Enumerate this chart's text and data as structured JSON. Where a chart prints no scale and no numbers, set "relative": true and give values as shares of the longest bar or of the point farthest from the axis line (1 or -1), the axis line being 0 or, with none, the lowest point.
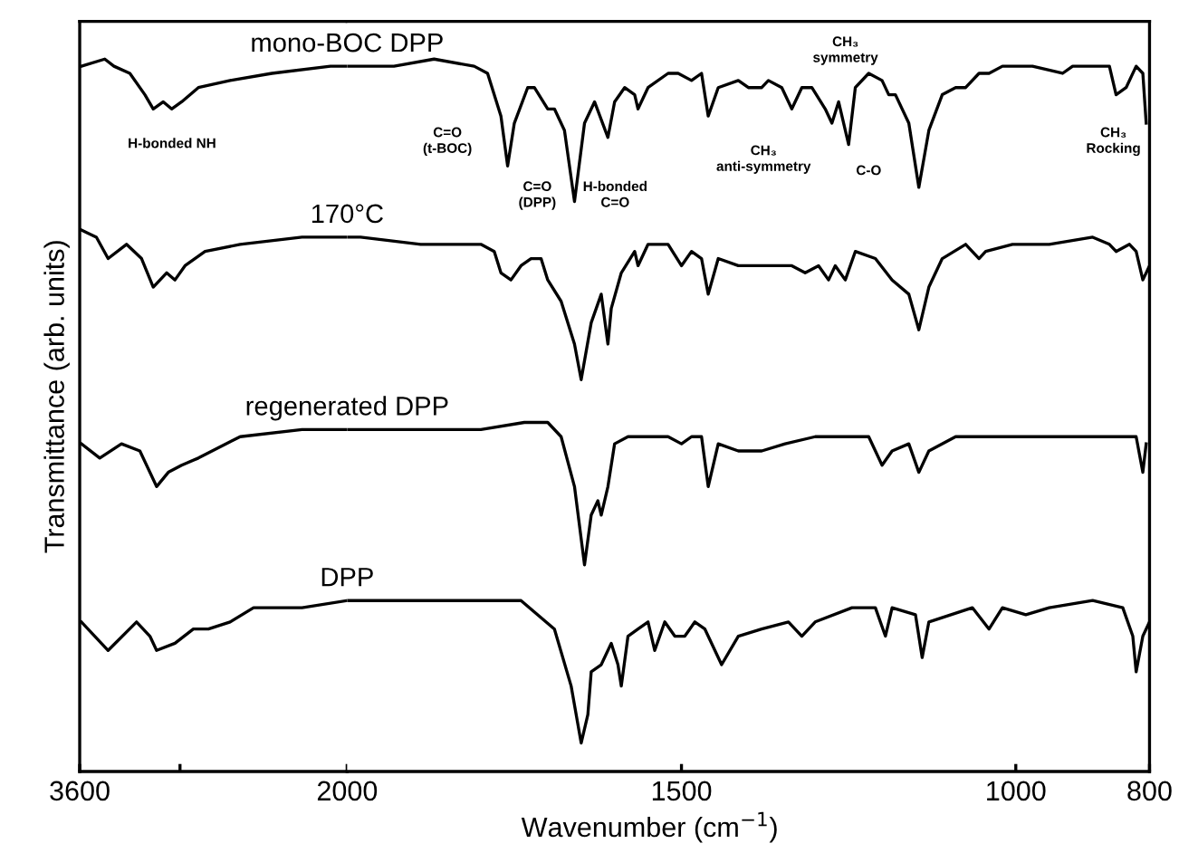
{
  "chart_data": [
    {
      "type": "line",
      "relative": true,
      "ylabel": "Transmittance (arb. units)",
      "xlim": [
        3600,
        2000
      ],
      "xticks": [
        3600,
        {
          "value": 3000,
          "label": null
        },
        2000
      ],
      "grid": false,
      "legend": false,
      "marker": "none",
      "line_style": "solid",
      "series": [
        {
          "name": "mono-BOC DPP",
          "color": "#000000",
          "x": [
            3590,
            3450,
            3395,
            3300,
            3210,
            3160,
            3100,
            3050,
            2990,
            2890,
            2700,
            2450,
            2100,
            2000
          ],
          "values": [
            0.99,
            1.0,
            0.99,
            0.98,
            0.95,
            0.93,
            0.94,
            0.93,
            0.94,
            0.96,
            0.97,
            0.98,
            0.99,
            0.99
          ]
        },
        {
          "name": "170°C",
          "color": "#000000",
          "x": [
            3590,
            3500,
            3430,
            3320,
            3230,
            3160,
            3080,
            3030,
            2970,
            2850,
            2640,
            2270,
            2000
          ],
          "values": [
            0.76,
            0.75,
            0.72,
            0.74,
            0.72,
            0.68,
            0.7,
            0.69,
            0.71,
            0.73,
            0.74,
            0.75,
            0.75
          ]
        },
        {
          "name": "regenerated DPP",
          "color": "#000000",
          "x": [
            3590,
            3480,
            3350,
            3240,
            3140,
            3070,
            2990,
            2890,
            2640,
            2270,
            2000
          ],
          "values": [
            0.46,
            0.44,
            0.46,
            0.45,
            0.4,
            0.42,
            0.43,
            0.44,
            0.47,
            0.48,
            0.48
          ]
        },
        {
          "name": "DPP",
          "color": "#000000",
          "x": [
            3590,
            3430,
            3260,
            3180,
            3140,
            3030,
            2920,
            2830,
            2700,
            2560,
            2270,
            2000
          ],
          "values": [
            0.21,
            0.17,
            0.21,
            0.19,
            0.17,
            0.18,
            0.2,
            0.2,
            0.21,
            0.23,
            0.23,
            0.24
          ]
        }
      ],
      "annotations": [
        "H-bonded NH"
      ]
    },
    {
      "type": "line",
      "relative": true,
      "xlabel": "Wavenumber (cm$^{−1}$)",
      "xlim": [
        2000,
        800
      ],
      "xticks": [
        1500,
        1000,
        800
      ],
      "grid": false,
      "legend": false,
      "marker": "none",
      "line_style": "solid",
      "series": [
        {
          "color": "#000000",
          "x": [
            2000,
            1930,
            1870,
            1810,
            1790,
            1770,
            1760,
            1750,
            1730,
            1720,
            1700,
            1690,
            1675,
            1660,
            1645,
            1630,
            1610,
            1600,
            1585,
            1570,
            1565,
            1550,
            1520,
            1505,
            1485,
            1470,
            1460,
            1445,
            1415,
            1400,
            1380,
            1370,
            1350,
            1335,
            1320,
            1305,
            1285,
            1275,
            1265,
            1250,
            1240,
            1220,
            1200,
            1190,
            1180,
            1160,
            1145,
            1130,
            1110,
            1090,
            1075,
            1055,
            1040,
            1020,
            975,
            930,
            915,
            875,
            860,
            850,
            835,
            820,
            810,
            805
          ],
          "values": [
            0.99,
            0.99,
            1.0,
            0.99,
            0.98,
            0.92,
            0.85,
            0.91,
            0.96,
            0.96,
            0.93,
            0.93,
            0.9,
            0.8,
            0.91,
            0.94,
            0.89,
            0.94,
            0.96,
            0.95,
            0.93,
            0.96,
            0.98,
            0.98,
            0.97,
            0.98,
            0.92,
            0.96,
            0.97,
            0.96,
            0.96,
            0.97,
            0.96,
            0.93,
            0.96,
            0.96,
            0.93,
            0.91,
            0.94,
            0.88,
            0.96,
            0.98,
            0.97,
            0.95,
            0.95,
            0.91,
            0.82,
            0.9,
            0.95,
            0.96,
            0.96,
            0.98,
            0.98,
            0.99,
            0.99,
            0.98,
            0.99,
            0.99,
            0.99,
            0.95,
            0.96,
            0.99,
            0.98,
            0.91
          ]
        },
        {
          "color": "#000000",
          "x": [
            2000,
            1980,
            1890,
            1800,
            1780,
            1770,
            1755,
            1740,
            1725,
            1710,
            1700,
            1680,
            1660,
            1650,
            1635,
            1620,
            1610,
            1605,
            1590,
            1570,
            1565,
            1550,
            1520,
            1500,
            1485,
            1470,
            1460,
            1445,
            1415,
            1380,
            1350,
            1335,
            1315,
            1295,
            1280,
            1270,
            1255,
            1240,
            1210,
            1185,
            1160,
            1145,
            1130,
            1110,
            1075,
            1055,
            1045,
            1005,
            950,
            885,
            860,
            850,
            830,
            820,
            810,
            800
          ],
          "values": [
            0.75,
            0.75,
            0.74,
            0.74,
            0.73,
            0.7,
            0.69,
            0.71,
            0.72,
            0.72,
            0.69,
            0.66,
            0.6,
            0.55,
            0.63,
            0.67,
            0.6,
            0.65,
            0.7,
            0.73,
            0.71,
            0.74,
            0.74,
            0.71,
            0.73,
            0.72,
            0.67,
            0.72,
            0.71,
            0.71,
            0.71,
            0.71,
            0.7,
            0.71,
            0.69,
            0.71,
            0.69,
            0.73,
            0.72,
            0.69,
            0.67,
            0.62,
            0.68,
            0.72,
            0.74,
            0.72,
            0.73,
            0.74,
            0.74,
            0.75,
            0.74,
            0.73,
            0.74,
            0.73,
            0.69,
            0.71
          ]
        },
        {
          "color": "#000000",
          "x": [
            2000,
            1930,
            1800,
            1735,
            1700,
            1680,
            1660,
            1645,
            1635,
            1625,
            1620,
            1610,
            1600,
            1580,
            1565,
            1545,
            1520,
            1500,
            1485,
            1470,
            1460,
            1445,
            1415,
            1380,
            1345,
            1300,
            1245,
            1220,
            1200,
            1185,
            1160,
            1145,
            1130,
            1090,
            1040,
            975,
            885,
            820,
            810,
            805
          ],
          "values": [
            0.48,
            0.48,
            0.48,
            0.49,
            0.49,
            0.47,
            0.4,
            0.29,
            0.36,
            0.38,
            0.36,
            0.4,
            0.46,
            0.47,
            0.47,
            0.47,
            0.47,
            0.46,
            0.47,
            0.47,
            0.4,
            0.46,
            0.45,
            0.45,
            0.46,
            0.47,
            0.47,
            0.47,
            0.43,
            0.45,
            0.46,
            0.42,
            0.45,
            0.47,
            0.47,
            0.47,
            0.47,
            0.47,
            0.42,
            0.46
          ]
        },
        {
          "color": "#000000",
          "x": [
            2000,
            1980,
            1890,
            1800,
            1740,
            1715,
            1690,
            1665,
            1650,
            1640,
            1635,
            1620,
            1605,
            1595,
            1590,
            1580,
            1565,
            1550,
            1540,
            1525,
            1510,
            1495,
            1480,
            1465,
            1440,
            1415,
            1380,
            1340,
            1320,
            1300,
            1245,
            1210,
            1195,
            1185,
            1150,
            1140,
            1130,
            1065,
            1040,
            1020,
            985,
            950,
            885,
            840,
            825,
            820,
            810,
            800
          ],
          "values": [
            0.24,
            0.24,
            0.24,
            0.24,
            0.24,
            0.22,
            0.2,
            0.12,
            0.04,
            0.08,
            0.14,
            0.15,
            0.18,
            0.15,
            0.12,
            0.19,
            0.2,
            0.21,
            0.17,
            0.21,
            0.19,
            0.19,
            0.21,
            0.2,
            0.15,
            0.19,
            0.2,
            0.21,
            0.19,
            0.21,
            0.23,
            0.23,
            0.19,
            0.23,
            0.22,
            0.16,
            0.21,
            0.23,
            0.2,
            0.23,
            0.22,
            0.23,
            0.24,
            0.23,
            0.19,
            0.14,
            0.19,
            0.21
          ]
        }
      ],
      "annotations": [
        "C=O\n(t-BOC)",
        "C=O\n(DPP)",
        "H-bonded\nC=O",
        "CH₃\nanti-symmetry",
        "CH₃\nsymmetry",
        "C-O",
        "CH₃\nRocking"
      ]
    }
  ]
}
